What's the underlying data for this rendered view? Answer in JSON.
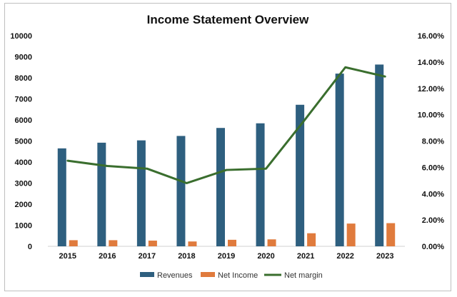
{
  "chart_data": {
    "type": "bar",
    "title": "Income Statement Overview",
    "categories": [
      "2015",
      "2016",
      "2017",
      "2018",
      "2019",
      "2020",
      "2021",
      "2022",
      "2023"
    ],
    "series": [
      {
        "name": "Revenues",
        "type": "bar",
        "axis": "left",
        "color": "#2E5F7F",
        "values": [
          4650,
          4920,
          5030,
          5240,
          5620,
          5840,
          6720,
          8200,
          8630
        ]
      },
      {
        "name": "Net Income",
        "type": "bar",
        "axis": "left",
        "color": "#E07B3D",
        "values": [
          290,
          290,
          270,
          230,
          310,
          330,
          620,
          1080,
          1100
        ]
      },
      {
        "name": "Net margin",
        "type": "line",
        "axis": "right",
        "color": "#3A6E2E",
        "values": [
          0.065,
          0.061,
          0.059,
          0.048,
          0.058,
          0.059,
          0.097,
          0.136,
          0.129
        ]
      }
    ],
    "y_left": {
      "min": 0,
      "max": 10000,
      "ticks": [
        "0",
        "1000",
        "2000",
        "3000",
        "4000",
        "5000",
        "6000",
        "7000",
        "8000",
        "9000",
        "10000"
      ]
    },
    "y_right": {
      "min": 0,
      "max": 0.16,
      "ticks": [
        "0.00%",
        "2.00%",
        "4.00%",
        "6.00%",
        "8.00%",
        "10.00%",
        "12.00%",
        "14.00%",
        "16.00%"
      ]
    },
    "grid": false,
    "legend_position": "bottom"
  }
}
